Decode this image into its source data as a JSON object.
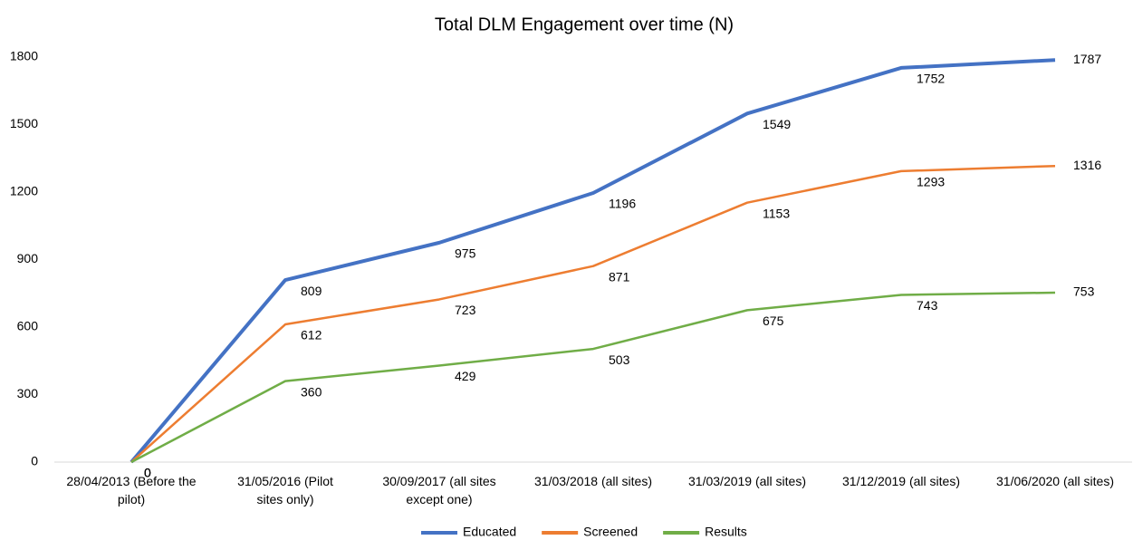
{
  "chart_data": {
    "type": "line",
    "title": "Total DLM Engagement over time (N)",
    "categories": [
      "28/04/2013 (Before the pilot)",
      "31/05/2016 (Pilot sites only)",
      "30/09/2017 (all sites except one)",
      "31/03/2018 (all sites)",
      "31/03/2019 (all sites)",
      "31/12/2019 (all sites)",
      "31/06/2020 (all sites)"
    ],
    "series": [
      {
        "name": "Educated",
        "color": "#4472c4",
        "values": [
          0,
          809,
          975,
          1196,
          1549,
          1752,
          1787
        ]
      },
      {
        "name": "Screened",
        "color": "#ed7d31",
        "values": [
          0,
          612,
          723,
          871,
          1153,
          1293,
          1316
        ]
      },
      {
        "name": "Results",
        "color": "#70ad47",
        "values": [
          0,
          360,
          429,
          503,
          675,
          743,
          753
        ]
      }
    ],
    "ylim": [
      0,
      1800
    ],
    "yticks": [
      0,
      300,
      600,
      900,
      1200,
      1500,
      1800
    ],
    "grid": false,
    "legend": "bottom"
  }
}
